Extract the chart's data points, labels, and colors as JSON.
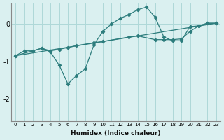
{
  "title": "",
  "xlabel": "Humidex (Indice chaleur)",
  "ylabel": "",
  "bg_color": "#daf0f0",
  "line_color": "#2d7d7d",
  "grid_color": "#aed8d8",
  "xlim": [
    -0.5,
    23.5
  ],
  "ylim": [
    -2.6,
    0.55
  ],
  "yticks": [
    -2,
    -1,
    0
  ],
  "xticks": [
    0,
    1,
    2,
    3,
    4,
    5,
    6,
    7,
    8,
    9,
    10,
    11,
    12,
    13,
    14,
    15,
    16,
    17,
    18,
    19,
    20,
    21,
    22,
    23
  ],
  "curve1_x": [
    0,
    1,
    2,
    3,
    4,
    5,
    6,
    7,
    8,
    9,
    10,
    11,
    12,
    13,
    14,
    15,
    16,
    17,
    18,
    19,
    20,
    21,
    22,
    23
  ],
  "curve1_y": [
    -0.85,
    -0.72,
    -0.72,
    -0.65,
    -0.75,
    -1.1,
    -1.6,
    -1.38,
    -1.2,
    -0.55,
    -0.2,
    0.0,
    0.15,
    0.25,
    0.38,
    0.45,
    0.18,
    -0.35,
    -0.45,
    -0.45,
    -0.07,
    -0.05,
    0.02,
    0.02
  ],
  "curve2_x": [
    0,
    23
  ],
  "curve2_y": [
    -0.85,
    0.02
  ],
  "curve3_x": [
    0,
    3,
    4,
    5,
    6,
    7,
    9,
    10,
    13,
    14,
    16,
    17,
    18,
    19,
    20,
    21,
    22,
    23
  ],
  "curve3_y": [
    -0.85,
    -0.65,
    -0.72,
    -0.68,
    -0.63,
    -0.58,
    -0.5,
    -0.47,
    -0.35,
    -0.32,
    -0.42,
    -0.42,
    -0.42,
    -0.4,
    -0.2,
    -0.05,
    0.02,
    0.02
  ]
}
